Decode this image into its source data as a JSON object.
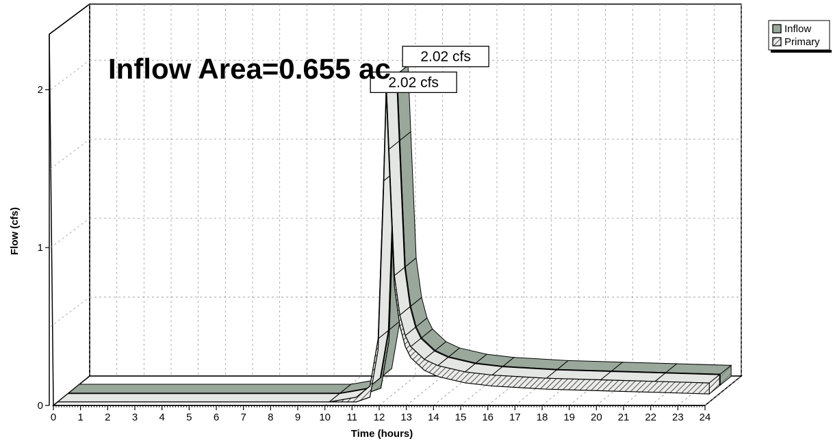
{
  "chart_data": {
    "type": "area",
    "title": "Inflow Area=0.655 ac",
    "xlabel": "Time (hours)",
    "ylabel": "Flow (cfs)",
    "xlim": [
      0,
      24
    ],
    "ylim": [
      0,
      2.2
    ],
    "x_ticks": [
      "0",
      "1",
      "2",
      "3",
      "4",
      "5",
      "6",
      "7",
      "8",
      "9",
      "10",
      "11",
      "12",
      "13",
      "14",
      "15",
      "16",
      "17",
      "18",
      "19",
      "20",
      "21",
      "22",
      "23",
      "24"
    ],
    "y_ticks": [
      "0",
      "1",
      "2"
    ],
    "grid": true,
    "legend_position": "top-right",
    "x": [
      0,
      10.0,
      11.0,
      11.5,
      11.8,
      12.0,
      12.1,
      12.2,
      12.4,
      12.6,
      12.8,
      13.0,
      13.5,
      14.0,
      15.0,
      16.0,
      18.0,
      20.0,
      22.0,
      24.0
    ],
    "series": [
      {
        "name": "Inflow",
        "color": "#9aa89c",
        "values": [
          0.0,
          0.0,
          0.03,
          0.1,
          0.4,
          1.4,
          2.02,
          1.6,
          0.8,
          0.55,
          0.42,
          0.35,
          0.27,
          0.23,
          0.19,
          0.17,
          0.15,
          0.14,
          0.13,
          0.12
        ]
      },
      {
        "name": "Primary",
        "color": "#d9dbd9",
        "values": [
          0.0,
          0.0,
          0.03,
          0.1,
          0.4,
          1.4,
          2.02,
          1.6,
          0.8,
          0.55,
          0.42,
          0.35,
          0.27,
          0.23,
          0.19,
          0.17,
          0.15,
          0.14,
          0.13,
          0.12
        ]
      }
    ],
    "annotations": [
      {
        "series": "Inflow",
        "text": "2.02 cfs"
      },
      {
        "series": "Primary",
        "text": "2.02 cfs"
      }
    ]
  }
}
